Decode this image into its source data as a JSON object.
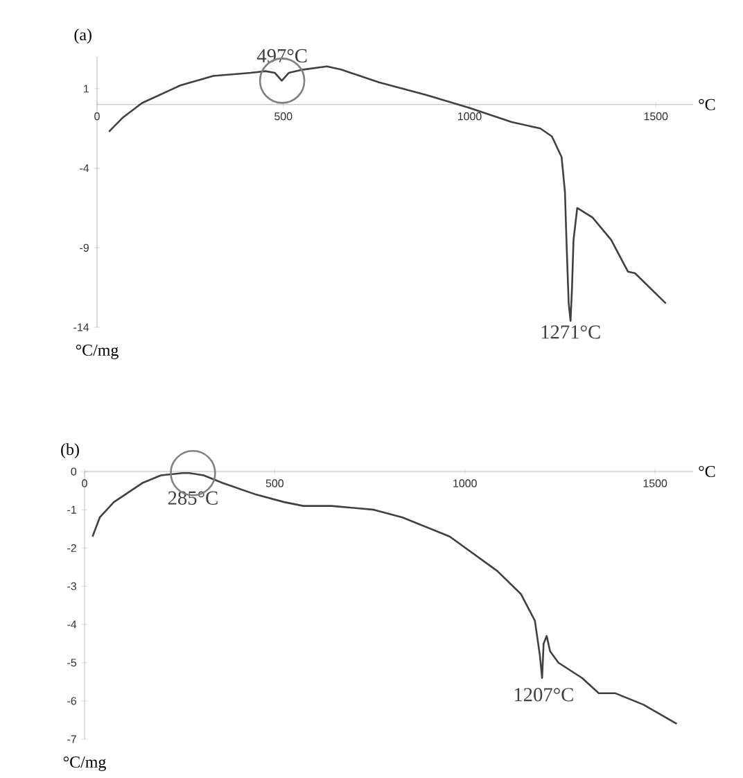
{
  "chart_data": [
    {
      "type": "line",
      "title": "(a)",
      "xlabel": "°C",
      "ylabel": "°C/mg",
      "color": "#404040",
      "x": [
        32,
        70,
        121,
        223,
        312,
        413,
        452,
        477,
        496,
        515,
        553,
        617,
        655,
        757,
        884,
        999,
        1113,
        1190,
        1221,
        1247,
        1256,
        1260,
        1266,
        1271,
        1275,
        1279,
        1289,
        1330,
        1380,
        1425,
        1444,
        1527
      ],
      "values": [
        -1.7,
        -0.8,
        0.1,
        1.2,
        1.8,
        2.0,
        2.1,
        2.0,
        1.5,
        2.0,
        2.2,
        2.4,
        2.2,
        1.4,
        0.6,
        -0.2,
        -1.1,
        -1.5,
        -2.0,
        -3.3,
        -5.5,
        -8.5,
        -12.5,
        -13.6,
        -11.5,
        -8.5,
        -6.5,
        -7.1,
        -8.5,
        -10.5,
        -10.6,
        -12.5
      ],
      "xlim": [
        0,
        1600
      ],
      "xticks": [
        0,
        500,
        1000,
        1500
      ],
      "ylim": [
        -14,
        3
      ],
      "yticks": [
        1,
        -4,
        -9,
        -14
      ],
      "annotations": [
        {
          "text": "497°C",
          "x": 497,
          "y": 1.5
        },
        {
          "text": "1271°C",
          "x": 1271,
          "y": -13.6
        }
      ]
    },
    {
      "type": "line",
      "title": "(b)",
      "xlabel": "°C",
      "ylabel": "°C/mg",
      "color": "#404040",
      "x": [
        21,
        40,
        77,
        152,
        201,
        257,
        276,
        313,
        363,
        450,
        525,
        575,
        649,
        761,
        836,
        960,
        1085,
        1147,
        1184,
        1197,
        1203,
        1207,
        1215,
        1224,
        1246,
        1308,
        1352,
        1396,
        1470,
        1557
      ],
      "values": [
        -1.7,
        -1.2,
        -0.8,
        -0.3,
        -0.1,
        -0.04,
        -0.04,
        -0.1,
        -0.3,
        -0.6,
        -0.8,
        -0.9,
        -0.9,
        -1.0,
        -1.2,
        -1.7,
        -2.6,
        -3.2,
        -3.9,
        -4.8,
        -5.4,
        -4.5,
        -4.3,
        -4.7,
        -5.0,
        -5.4,
        -5.8,
        -5.8,
        -6.1,
        -6.6
      ],
      "xlim": [
        0,
        1600
      ],
      "xticks": [
        0,
        500,
        1000,
        1500
      ],
      "ylim": [
        -7,
        0
      ],
      "yticks": [
        0,
        -1,
        -2,
        -3,
        -4,
        -5,
        -6,
        -7
      ],
      "annotations": [
        {
          "text": "285°C",
          "x": 285,
          "y": -0.04
        },
        {
          "text": "1207°C",
          "x": 1207,
          "y": -5.4
        }
      ]
    }
  ]
}
